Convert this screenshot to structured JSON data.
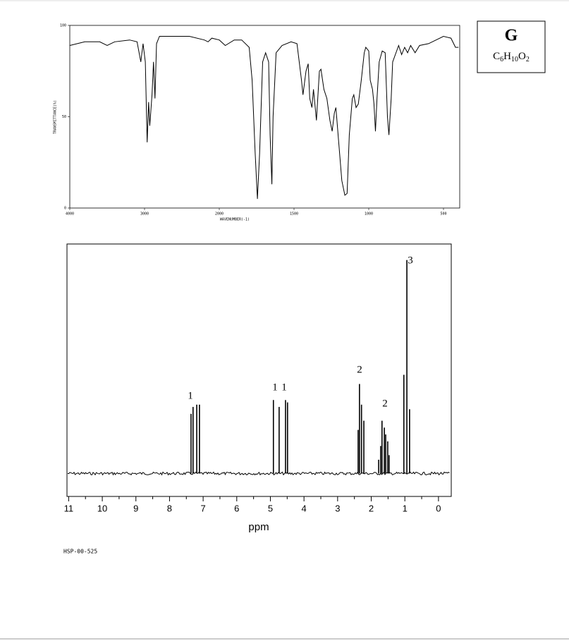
{
  "label_box": {
    "letter": "G",
    "formula": [
      "C",
      "6",
      "H",
      "10",
      "O",
      "2"
    ]
  },
  "sample_code": "HSP-00-525",
  "chart_data": [
    {
      "type": "line",
      "x_label": "WAVENUMBER(-1)",
      "y_label": "TRANSMITTANCE(%)",
      "color": "#000000",
      "xlim": [
        4000,
        400
      ],
      "xticks": [
        4000,
        3000,
        2000,
        1500,
        1000,
        500
      ],
      "ylim": [
        0,
        100
      ],
      "yticks": [
        100,
        50,
        0
      ],
      "x": [
        4000,
        3800,
        3600,
        3500,
        3400,
        3200,
        3100,
        3050,
        3020,
        2990,
        2965,
        2945,
        2930,
        2900,
        2880,
        2860,
        2840,
        2800,
        2600,
        2400,
        2200,
        2150,
        2100,
        2000,
        1960,
        1900,
        1850,
        1800,
        1780,
        1760,
        1745,
        1730,
        1710,
        1690,
        1670,
        1660,
        1648,
        1640,
        1620,
        1580,
        1520,
        1480,
        1450,
        1440,
        1420,
        1405,
        1395,
        1380,
        1370,
        1350,
        1330,
        1320,
        1300,
        1280,
        1260,
        1245,
        1230,
        1220,
        1200,
        1180,
        1160,
        1145,
        1130,
        1110,
        1100,
        1085,
        1070,
        1050,
        1030,
        1020,
        1000,
        990,
        975,
        965,
        955,
        945,
        930,
        910,
        890,
        875,
        865,
        850,
        840,
        800,
        780,
        760,
        740,
        720,
        690,
        660,
        600,
        500,
        450,
        420,
        400
      ],
      "values": [
        89,
        91,
        91,
        89,
        91,
        92,
        91,
        80,
        90,
        80,
        36,
        58,
        45,
        62,
        80,
        60,
        90,
        94,
        94,
        94,
        92,
        91,
        93,
        92,
        89,
        92,
        92,
        88,
        70,
        30,
        5,
        30,
        80,
        85,
        80,
        40,
        13,
        50,
        85,
        89,
        91,
        90,
        70,
        62,
        75,
        79,
        60,
        55,
        65,
        48,
        75,
        76,
        65,
        60,
        48,
        42,
        52,
        55,
        35,
        15,
        7,
        8,
        40,
        60,
        62,
        55,
        57,
        70,
        85,
        88,
        86,
        70,
        65,
        57,
        42,
        60,
        80,
        86,
        85,
        50,
        40,
        60,
        80,
        89,
        84,
        88,
        85,
        89,
        85,
        89,
        90,
        94,
        93,
        88,
        88
      ]
    },
    {
      "type": "stick",
      "x_label": "ppm",
      "color": "#000000",
      "xlim": [
        11.05,
        -0.38
      ],
      "xticks": [
        11,
        10,
        9,
        8,
        7,
        6,
        5,
        4,
        3,
        2,
        1,
        0
      ],
      "ylim": [
        -10,
        100
      ],
      "x": [
        7.36,
        7.3,
        7.19,
        7.11,
        4.91,
        4.74,
        4.55,
        4.49,
        2.39,
        2.35,
        2.29,
        2.22,
        1.78,
        1.72,
        1.68,
        1.61,
        1.57,
        1.51,
        1.47,
        1.03,
        0.94,
        0.86
      ],
      "values": [
        26,
        29,
        30,
        30,
        32,
        29,
        32,
        31,
        19,
        39,
        30,
        23,
        6,
        12,
        23,
        20,
        17,
        14,
        8,
        43,
        93,
        28
      ],
      "annotations": [
        "1",
        "1",
        "1",
        "2",
        "2",
        "3"
      ]
    }
  ]
}
